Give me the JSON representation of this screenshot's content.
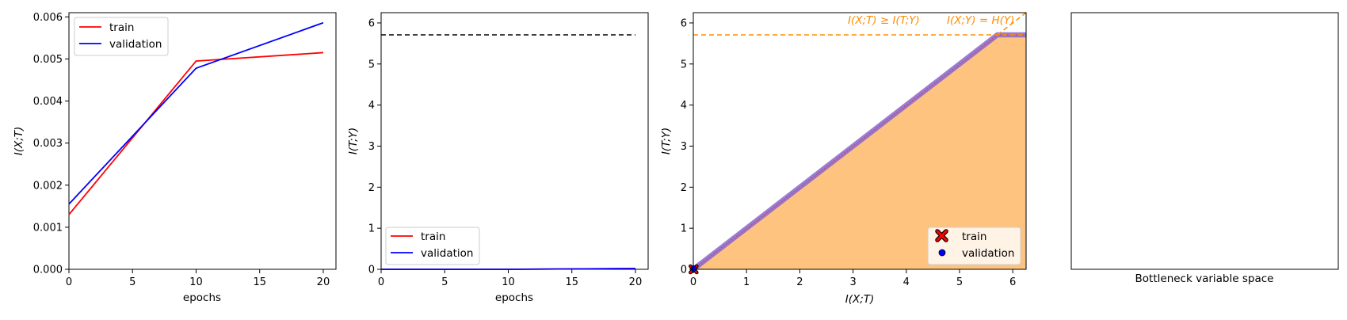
{
  "chart_data": [
    {
      "type": "line",
      "xlabel": "epochs",
      "ylabel": "I(X;T)",
      "xlim": [
        0,
        21
      ],
      "ylim": [
        0,
        0.0061
      ],
      "xticks": [
        "0",
        "5",
        "10",
        "15",
        "20"
      ],
      "yticks": [
        "0.000",
        "0.001",
        "0.002",
        "0.003",
        "0.004",
        "0.005",
        "0.006"
      ],
      "legend": "top-left",
      "series": [
        {
          "name": "train",
          "color": "#ff0000",
          "x": [
            0,
            10,
            20
          ],
          "y": [
            0.0013,
            0.00495,
            0.00515
          ]
        },
        {
          "name": "validation",
          "color": "#0000ff",
          "x": [
            0,
            10,
            20
          ],
          "y": [
            0.00155,
            0.00478,
            0.00586
          ]
        }
      ]
    },
    {
      "type": "line",
      "xlabel": "epochs",
      "ylabel": "I(T;Y)",
      "xlim": [
        0,
        21
      ],
      "ylim": [
        0,
        6.25
      ],
      "xticks": [
        "0",
        "5",
        "10",
        "15",
        "20"
      ],
      "yticks": [
        "0",
        "1",
        "2",
        "3",
        "4",
        "5",
        "6"
      ],
      "legend": "bottom-left",
      "reference_line": {
        "y": 5.71,
        "style": "dashed",
        "color": "#000000"
      },
      "series": [
        {
          "name": "train",
          "color": "#ff0000",
          "x": [
            0,
            10,
            20
          ],
          "y": [
            0,
            0,
            0.02
          ]
        },
        {
          "name": "validation",
          "color": "#0000ff",
          "x": [
            0,
            10,
            20
          ],
          "y": [
            0,
            0,
            0.02
          ]
        }
      ]
    },
    {
      "type": "scatter",
      "xlabel": "I(X;T)",
      "ylabel": "I(T;Y)",
      "xlim": [
        0,
        6.25
      ],
      "ylim": [
        0,
        6.25
      ],
      "xticks": [
        "0",
        "1",
        "2",
        "3",
        "4",
        "5",
        "6"
      ],
      "yticks": [
        "0",
        "1",
        "2",
        "3",
        "4",
        "5",
        "6"
      ],
      "legend": "bottom-right",
      "h_y": 5.71,
      "annotations": [
        "I(X;T) ≥ I(T;Y)",
        "I(X;Y) = H(Y)"
      ],
      "fill_color": "#ffc380",
      "bound_color": "#8866cc",
      "ref_color": "#ff8c00",
      "series": [
        {
          "name": "train",
          "marker": "x",
          "color": "#ff0000",
          "points": [
            [
              0.005,
              0.0
            ]
          ]
        },
        {
          "name": "validation",
          "marker": "o",
          "color": "#0000ff",
          "points": [
            [
              0.006,
              0.02
            ]
          ]
        }
      ]
    },
    {
      "type": "scatter",
      "xlabel": "Bottleneck variable space",
      "ylabel": "",
      "points": []
    }
  ]
}
